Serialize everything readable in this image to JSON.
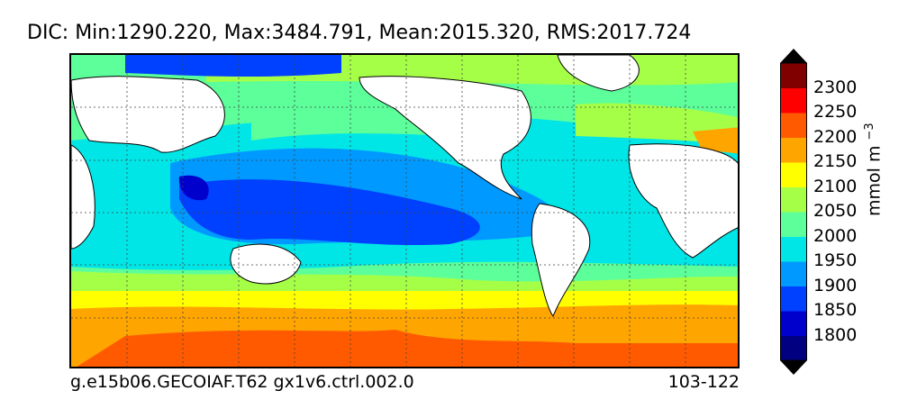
{
  "title": "DIC: Min:1290.220, Max:3484.791, Mean:2015.320, RMS:2017.724",
  "footer": {
    "case_name": "g.e15b06.GECOIAF.T62 gx1v6.ctrl.002.0",
    "years": "103-122"
  },
  "colorbar": {
    "label": "mmol m",
    "label_exponent": "−3",
    "ticks": [
      "2300",
      "2250",
      "2200",
      "2150",
      "2100",
      "2050",
      "2000",
      "1950",
      "1900",
      "1850",
      "1800"
    ],
    "colors": [
      "#000080",
      "#0000cd",
      "#0040ff",
      "#0099ff",
      "#00e6e6",
      "#5cff9a",
      "#a6ff47",
      "#ffff00",
      "#ffa500",
      "#ff5a00",
      "#ff0000",
      "#800000"
    ]
  }
}
